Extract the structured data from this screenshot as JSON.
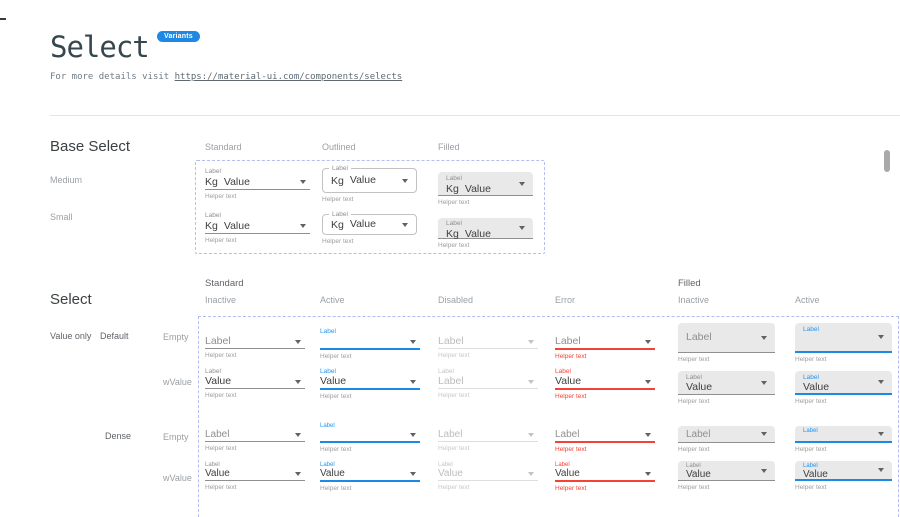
{
  "page": {
    "title": "Select",
    "badge": "Variants",
    "subtitle_prefix": "For more details visit ",
    "subtitle_link": "https://material-ui.com/components/selects"
  },
  "colors": {
    "accent_blue": "#2196F3",
    "underline_blue": "#1E88E5",
    "badge_blue": "#1E88E5",
    "error_red": "#F44336",
    "filled_bg": "#E9E9E9",
    "dashed_border": "#B3BCF5"
  },
  "base_select": {
    "heading": "Base Select",
    "columns": [
      "Standard",
      "Outlined",
      "Filled"
    ],
    "rows": [
      "Medium",
      "Small"
    ],
    "label": "Label",
    "adornment": "Kg",
    "value": "Value",
    "helper": "Helper text"
  },
  "select_grid": {
    "heading": "Select",
    "groups": [
      {
        "label": "Standard"
      },
      {
        "label": "Filled"
      }
    ],
    "states": [
      "Inactive",
      "Active",
      "Disabled",
      "Error",
      "Inactive",
      "Active"
    ],
    "row_labels": {
      "group": "Value only",
      "variant": "Default",
      "dense": "Dense",
      "empty": "Empty",
      "with_value": "wValue"
    },
    "cells": [
      {
        "variant": "standard",
        "state": "inactive",
        "placeholder": "Label",
        "helper": "Helper text"
      },
      {
        "variant": "standard",
        "state": "active",
        "label": "Label",
        "value": "",
        "helper": "Helper text"
      },
      {
        "variant": "standard",
        "state": "disabled",
        "placeholder": "Label",
        "helper": "Helper text"
      },
      {
        "variant": "standard",
        "state": "error",
        "placeholder": "Label",
        "helper": "Helper text"
      },
      {
        "variant": "filled",
        "state": "inactive",
        "placeholder": "Label",
        "helper": "Helper text"
      },
      {
        "variant": "filled",
        "state": "active",
        "label": "Label",
        "value": "",
        "helper": "Helper text"
      },
      {
        "variant": "standard",
        "state": "inactive",
        "label": "Label",
        "value": "Value",
        "helper": "Helper text"
      },
      {
        "variant": "standard",
        "state": "active",
        "label": "Label",
        "value": "Value",
        "helper": "Helper text"
      },
      {
        "variant": "standard",
        "state": "disabled",
        "label": "Label",
        "value": "Label",
        "helper": "Helper text"
      },
      {
        "variant": "standard",
        "state": "error",
        "label": "Label",
        "value": "Value",
        "helper": "Helper text"
      },
      {
        "variant": "filled",
        "state": "inactive",
        "label": "Label",
        "value": "Value",
        "helper": "Helper text"
      },
      {
        "variant": "filled",
        "state": "active",
        "label": "Label",
        "value": "Value",
        "helper": "Helper text"
      },
      {
        "variant": "standard",
        "state": "inactive",
        "placeholder": "Label",
        "helper": "Helper text"
      },
      {
        "variant": "standard",
        "state": "active",
        "label": "Label",
        "value": "",
        "helper": "Helper text"
      },
      {
        "variant": "standard",
        "state": "disabled",
        "placeholder": "Label",
        "helper": "Helper text"
      },
      {
        "variant": "standard",
        "state": "error",
        "placeholder": "Label",
        "helper": "Helper text"
      },
      {
        "variant": "filled",
        "state": "inactive",
        "placeholder": "Label",
        "helper": "Helper text"
      },
      {
        "variant": "filled",
        "state": "active",
        "label": "Label",
        "value": "",
        "helper": "Helper text"
      },
      {
        "variant": "standard",
        "state": "inactive",
        "label": "Label",
        "value": "Value",
        "helper": "Helper text"
      },
      {
        "variant": "standard",
        "state": "active",
        "label": "Label",
        "value": "Value",
        "helper": "Helper text"
      },
      {
        "variant": "standard",
        "state": "disabled",
        "label": "Label",
        "value": "Value",
        "helper": "Helper text"
      },
      {
        "variant": "standard",
        "state": "error",
        "label": "Label",
        "value": "Value",
        "helper": "Helper text"
      },
      {
        "variant": "filled",
        "state": "inactive",
        "label": "Label",
        "value": "Value",
        "helper": "Helper text"
      },
      {
        "variant": "filled",
        "state": "active",
        "label": "Label",
        "value": "Value",
        "helper": "Helper text"
      }
    ]
  }
}
